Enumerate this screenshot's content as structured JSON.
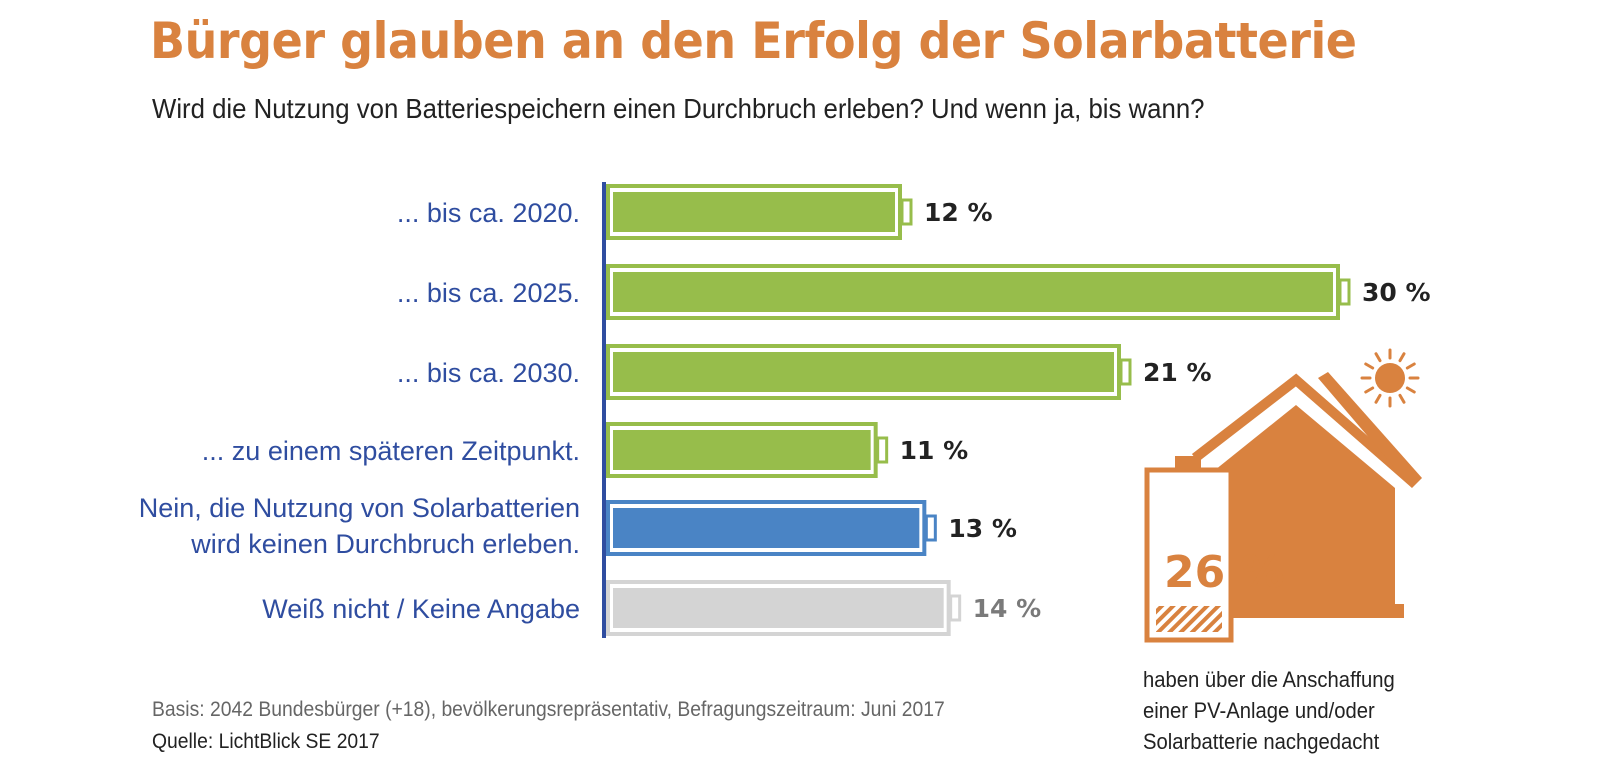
{
  "chart_data": {
    "type": "bar",
    "orientation": "horizontal",
    "title": "Bürger glauben an den Erfolg der Solarbatterie",
    "subtitle": "Wird die Nutzung von Batteriespeichern einen Durchbruch erleben? Und wenn ja, bis wann?",
    "categories": [
      "... bis ca. 2020.",
      "... bis ca. 2025.",
      "... bis ca. 2030.",
      "... zu einem späteren Zeitpunkt.",
      "Nein, die Nutzung von Solarbatterien wird keinen Durchbruch erleben.",
      "Weiß nicht / Keine Angabe"
    ],
    "values": [
      12,
      30,
      21,
      11,
      13,
      14
    ],
    "value_labels": [
      "12 %",
      "30 %",
      "21 %",
      "11 %",
      "13 %",
      "14 %"
    ],
    "xlim": [
      0,
      30
    ],
    "unit": "%",
    "colors": [
      "#97bd4b",
      "#97bd4b",
      "#97bd4b",
      "#97bd4b",
      "#4a84c5",
      "#d4d4d4"
    ],
    "label_colors": [
      "#222222",
      "#222222",
      "#222222",
      "#222222",
      "#222222",
      "#7a7a7a"
    ],
    "axis_color": "#2f4da0",
    "callout": {
      "value": 26,
      "label": "26 %",
      "text": "haben über die Anschaffung einer PV-Anlage und/oder Solarbatterie nachgedacht",
      "color": "#d9823f"
    }
  },
  "footer": {
    "basis": "Basis: 2042 Bundesbürger (+18), bevölkerungsrepräsentativ, Befragungszeitraum: Juni 2017",
    "source": "Quelle: LichtBlick SE 2017"
  }
}
